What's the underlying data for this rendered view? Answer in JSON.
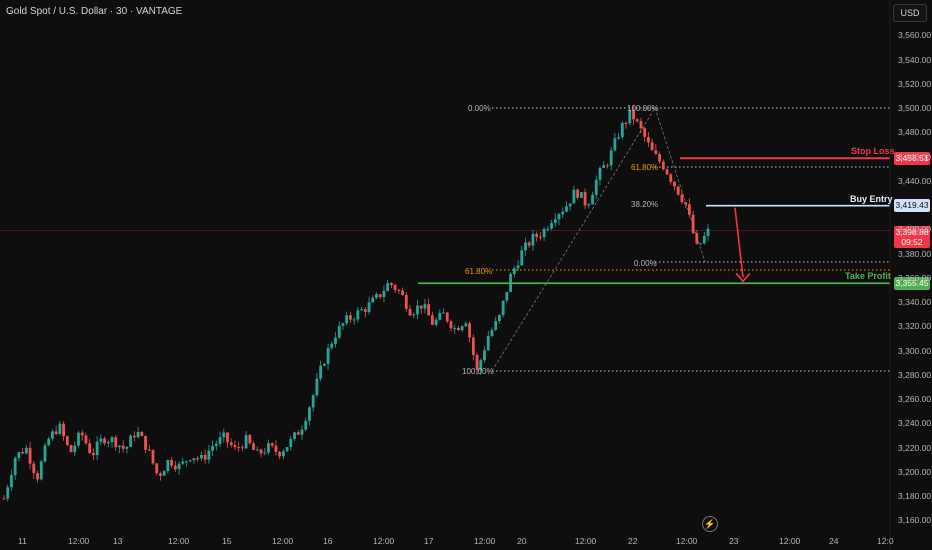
{
  "header": {
    "symbol_line": "Gold Spot / U.S. Dollar · 30 · VANTAGE"
  },
  "currency_button": "USD",
  "annotations": {
    "stop_loss": {
      "label": "Stop Loss",
      "price": "3,458.51",
      "color": "#f23645"
    },
    "buy_entry": {
      "label": "Buy Entry",
      "price": "3,419.43",
      "color": "#cfe3ff"
    },
    "take_profit": {
      "label": "Take Profit",
      "price": "3,355.45",
      "color": "#4caf50"
    },
    "current": {
      "price": "3,398.88",
      "timer": "09:52",
      "color": "#f23645"
    }
  },
  "fib_left": {
    "top": "0.00%",
    "mid": "61.80%",
    "bottom": "100.00%"
  },
  "fib_right": {
    "top": "100.00%",
    "mid": "61.80%",
    "retr": "38.20%",
    "bottom": "0.00%"
  },
  "y_ticks": [
    "3,560.00",
    "3,540.00",
    "3,520.00",
    "3,500.00",
    "3,480.00",
    "3,460.00",
    "3,440.00",
    "3,400.00",
    "3,380.00",
    "3,360.00",
    "3,340.00",
    "3,320.00",
    "3,300.00",
    "3,280.00",
    "3,260.00",
    "3,240.00",
    "3,220.00",
    "3,200.00",
    "3,180.00",
    "3,160.00"
  ],
  "x_ticks": [
    "11",
    "12:00",
    "13",
    "12:00",
    "15",
    "12:00",
    "16",
    "12:00",
    "17",
    "12:00",
    "20",
    "12:00",
    "22",
    "12:00",
    "23",
    "12:00",
    "24",
    "12:0"
  ],
  "chart_data": {
    "type": "candlestick",
    "title": "Gold Spot / U.S. Dollar · 30 · VANTAGE",
    "ylim": [
      3150,
      3575
    ],
    "close_path": [
      3178,
      3212,
      3220,
      3195,
      3226,
      3238,
      3215,
      3232,
      3214,
      3228,
      3226,
      3218,
      3234,
      3220,
      3196,
      3210,
      3204,
      3214,
      3210,
      3222,
      3228,
      3218,
      3226,
      3214,
      3220,
      3216,
      3224,
      3236,
      3260,
      3290,
      3312,
      3324,
      3330,
      3336,
      3344,
      3356,
      3348,
      3332,
      3338,
      3322,
      3330,
      3318,
      3326,
      3282,
      3312,
      3326,
      3360,
      3380,
      3392,
      3398,
      3412,
      3418,
      3432,
      3420,
      3444,
      3458,
      3482,
      3496,
      3480,
      3462,
      3452,
      3436,
      3420,
      3384,
      3398
    ]
  },
  "colors": {
    "up": "#26a69a",
    "down": "#ef5350",
    "background": "#0e0e0e"
  }
}
